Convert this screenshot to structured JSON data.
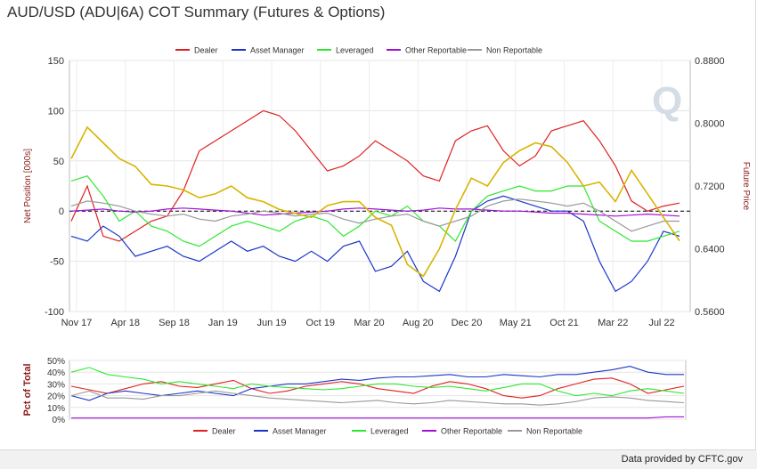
{
  "title": "AUD/USD (ADU|6A) COT Summary (Futures & Options)",
  "credit_prefix": "Data provided by",
  "credit_link": "CFTC.gov",
  "colors": {
    "dealer": "#e02020",
    "asset_manager": "#1a36c8",
    "leveraged": "#2ee82e",
    "other": "#a010d8",
    "nonrep": "#999999",
    "price": "#d8b400"
  },
  "chart_data": [
    {
      "type": "line",
      "title": "",
      "ylabel": "Net Position [000s]",
      "y2label": "Future Price",
      "ylim": [
        -100,
        150
      ],
      "y2lim": [
        0.56,
        0.88
      ],
      "yticks": [
        "150",
        "100",
        "50",
        "0",
        "-50",
        "-100"
      ],
      "y2ticks": [
        "0.8800",
        "0.8000",
        "0.7200",
        "0.6400",
        "0.5600"
      ],
      "xticks": [
        "Nov 17",
        "Apr 18",
        "Sep 18",
        "Jan 19",
        "Jun 19",
        "Oct 19",
        "Mar 20",
        "Aug 20",
        "Dec 20",
        "May 21",
        "Oct 21",
        "Mar 22",
        "Jul 22"
      ],
      "grid": true,
      "legend": "top",
      "legend_labels": [
        "Dealer",
        "Asset Manager",
        "Leveraged",
        "Other Reportable",
        "Non Reportable"
      ],
      "series": [
        {
          "name": "Dealer",
          "values": [
            -10,
            25,
            -25,
            -30,
            -20,
            -10,
            -5,
            20,
            60,
            70,
            80,
            90,
            100,
            95,
            80,
            60,
            40,
            45,
            55,
            70,
            60,
            50,
            35,
            30,
            70,
            80,
            85,
            60,
            45,
            55,
            80,
            85,
            90,
            70,
            45,
            10,
            0,
            5,
            8
          ]
        },
        {
          "name": "Asset Manager",
          "values": [
            -25,
            -30,
            -15,
            -25,
            -45,
            -40,
            -35,
            -45,
            -50,
            -40,
            -30,
            -40,
            -35,
            -45,
            -50,
            -40,
            -50,
            -35,
            -30,
            -60,
            -55,
            -40,
            -70,
            -80,
            -45,
            0,
            10,
            15,
            10,
            5,
            0,
            0,
            -10,
            -50,
            -80,
            -70,
            -50,
            -20,
            -25
          ]
        },
        {
          "name": "Leveraged",
          "values": [
            30,
            35,
            15,
            -10,
            0,
            -15,
            -20,
            -30,
            -35,
            -25,
            -15,
            -10,
            -15,
            -20,
            -10,
            -5,
            -10,
            -25,
            -15,
            0,
            -5,
            5,
            -10,
            -15,
            -30,
            0,
            15,
            20,
            25,
            20,
            20,
            25,
            25,
            -10,
            -20,
            -30,
            -30,
            -25,
            -20
          ]
        },
        {
          "name": "Other Reportable",
          "values": [
            0,
            1,
            2,
            0,
            -1,
            0,
            2,
            3,
            2,
            1,
            0,
            -2,
            -4,
            -3,
            -2,
            -1,
            0,
            2,
            3,
            2,
            1,
            0,
            1,
            3,
            2,
            2,
            1,
            0,
            0,
            -1,
            -2,
            -2,
            -3,
            -4,
            -5,
            -4,
            -3,
            -4,
            -5
          ]
        },
        {
          "name": "Non Reportable",
          "values": [
            5,
            10,
            8,
            5,
            0,
            -3,
            -5,
            -3,
            -8,
            -10,
            -5,
            -3,
            0,
            -2,
            -5,
            -3,
            -2,
            -8,
            -12,
            -8,
            -5,
            -3,
            -10,
            -15,
            -10,
            -5,
            5,
            10,
            12,
            10,
            8,
            5,
            8,
            0,
            -10,
            -20,
            -15,
            -10,
            -10
          ]
        },
        {
          "name": "Future Price",
          "axis": "right",
          "values": [
            0.755,
            0.795,
            0.775,
            0.755,
            0.745,
            0.722,
            0.72,
            0.715,
            0.705,
            0.71,
            0.72,
            0.705,
            0.7,
            0.69,
            0.685,
            0.68,
            0.695,
            0.7,
            0.7,
            0.68,
            0.67,
            0.62,
            0.605,
            0.64,
            0.69,
            0.73,
            0.72,
            0.75,
            0.765,
            0.775,
            0.77,
            0.75,
            0.72,
            0.725,
            0.7,
            0.74,
            0.71,
            0.68,
            0.65
          ]
        }
      ]
    },
    {
      "type": "line",
      "title": "",
      "ylabel": "Pct of Total",
      "ylim": [
        0,
        50
      ],
      "yticks": [
        "50%",
        "40%",
        "30%",
        "20%",
        "10%",
        "0%"
      ],
      "legend": "bottom",
      "legend_labels": [
        "Dealer",
        "Asset Manager",
        "Leveraged",
        "Other Reportable",
        "Non Reportable"
      ],
      "series": [
        {
          "name": "Dealer",
          "values": [
            28,
            25,
            22,
            26,
            30,
            32,
            28,
            27,
            30,
            33,
            26,
            22,
            24,
            28,
            30,
            32,
            30,
            26,
            24,
            22,
            28,
            32,
            30,
            26,
            20,
            18,
            20,
            26,
            30,
            34,
            35,
            30,
            22,
            25,
            28
          ]
        },
        {
          "name": "Asset Manager",
          "values": [
            20,
            16,
            22,
            24,
            22,
            20,
            22,
            24,
            22,
            20,
            26,
            28,
            30,
            30,
            32,
            34,
            33,
            35,
            36,
            36,
            37,
            38,
            36,
            36,
            38,
            37,
            36,
            38,
            38,
            40,
            42,
            45,
            40,
            38,
            38
          ]
        },
        {
          "name": "Leveraged",
          "values": [
            40,
            44,
            38,
            36,
            34,
            30,
            32,
            30,
            28,
            26,
            30,
            28,
            27,
            26,
            25,
            26,
            28,
            30,
            30,
            28,
            27,
            28,
            26,
            24,
            27,
            30,
            30,
            24,
            20,
            22,
            20,
            24,
            26,
            24,
            22
          ]
        },
        {
          "name": "Other Reportable",
          "values": [
            1,
            1,
            1,
            1,
            1,
            1,
            1,
            1,
            1,
            1,
            1,
            1,
            1,
            1,
            1,
            1,
            1,
            1,
            1,
            1,
            1,
            1,
            1,
            1,
            1,
            1,
            1,
            1,
            1,
            1,
            1,
            1,
            1,
            2,
            2
          ]
        },
        {
          "name": "Non Reportable",
          "values": [
            20,
            24,
            18,
            18,
            17,
            20,
            20,
            22,
            24,
            22,
            20,
            18,
            17,
            16,
            15,
            14,
            15,
            16,
            14,
            13,
            14,
            16,
            15,
            14,
            13,
            13,
            12,
            13,
            15,
            18,
            19,
            18,
            16,
            15,
            14
          ]
        }
      ]
    }
  ]
}
